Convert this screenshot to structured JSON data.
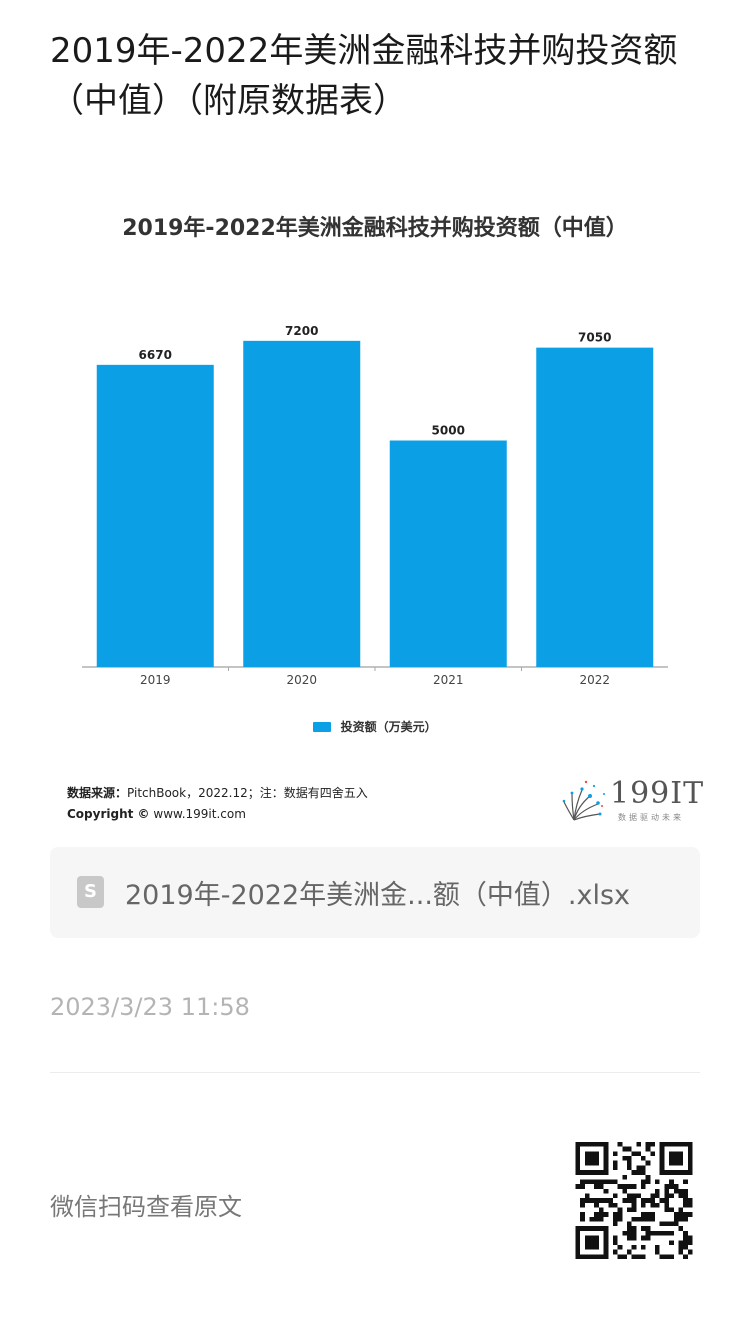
{
  "page": {
    "title": "2019年-2022年美洲金融科技并购投资额（中值）（附原数据表）"
  },
  "chart_data": {
    "type": "bar",
    "title": "2019年-2022年美洲金融科技并购投资额（中值）",
    "categories": [
      "2019",
      "2020",
      "2021",
      "2022"
    ],
    "series": [
      {
        "name": "投资额（万美元）",
        "values": [
          6670,
          7200,
          5000,
          7050
        ],
        "color": "#0ba0e5"
      }
    ],
    "ylim": [
      0,
      8000
    ],
    "grid": false,
    "legend_position": "bottom-center",
    "value_labels": true
  },
  "source": {
    "label": "数据来源：",
    "text": "PitchBook，2022.12；注：数据有四舍五入",
    "copyright_label": "Copyright ©",
    "copyright_text": "www.199it.com"
  },
  "logo": {
    "text": "199IT",
    "subtitle": "数据驱动未来",
    "icon": "dandelion-logo-icon"
  },
  "attachment": {
    "icon": "spreadsheet-file-icon",
    "icon_letter": "S",
    "filename": "2019年-2022年美洲金...额（中值）.xlsx"
  },
  "meta": {
    "timestamp": "2023/3/23 11:58",
    "qr_caption": "微信扫码查看原文",
    "qr_icon": "qr-code-icon"
  }
}
